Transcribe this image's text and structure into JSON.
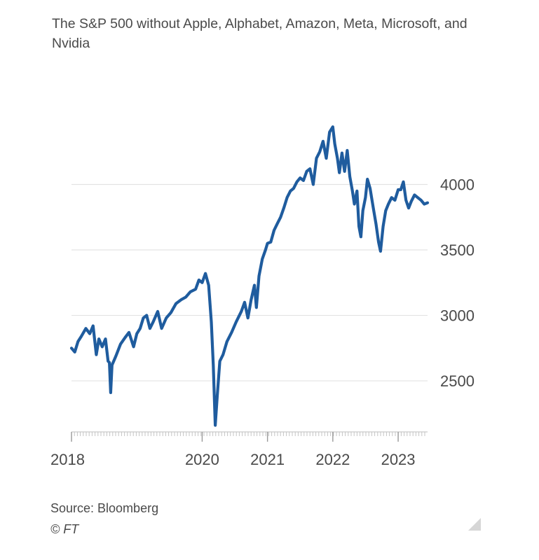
{
  "chart_data": {
    "type": "line",
    "title": "The S&P 500 without Apple, Alphabet, Amazon, Meta, Microsoft, and Nvidia",
    "xlabel": "",
    "ylabel": "",
    "x_tick_labels": [
      "2018",
      "2020",
      "2021",
      "2022",
      "2023"
    ],
    "x_tick_years": [
      2018,
      2020,
      2021,
      2022,
      2023
    ],
    "xlim": [
      2018.0,
      2023.45
    ],
    "y_ticks": [
      2500,
      3000,
      3500,
      4000
    ],
    "ylim": [
      2110,
      4500
    ],
    "grid": true,
    "y_axis_position": "right",
    "line_color": "#1f5c9e",
    "series": [
      {
        "points": [
          [
            2018.0,
            2750
          ],
          [
            2018.05,
            2720
          ],
          [
            2018.1,
            2800
          ],
          [
            2018.15,
            2840
          ],
          [
            2018.22,
            2900
          ],
          [
            2018.28,
            2860
          ],
          [
            2018.33,
            2920
          ],
          [
            2018.38,
            2700
          ],
          [
            2018.42,
            2820
          ],
          [
            2018.47,
            2760
          ],
          [
            2018.52,
            2820
          ],
          [
            2018.56,
            2650
          ],
          [
            2018.58,
            2640
          ],
          [
            2018.6,
            2410
          ],
          [
            2018.62,
            2620
          ],
          [
            2018.68,
            2690
          ],
          [
            2018.75,
            2780
          ],
          [
            2018.82,
            2830
          ],
          [
            2018.88,
            2870
          ],
          [
            2018.95,
            2760
          ],
          [
            2019.0,
            2860
          ],
          [
            2019.05,
            2900
          ],
          [
            2019.1,
            2980
          ],
          [
            2019.15,
            3000
          ],
          [
            2019.2,
            2900
          ],
          [
            2019.25,
            2950
          ],
          [
            2019.32,
            3030
          ],
          [
            2019.38,
            2900
          ],
          [
            2019.45,
            2980
          ],
          [
            2019.52,
            3020
          ],
          [
            2019.6,
            3090
          ],
          [
            2019.68,
            3120
          ],
          [
            2019.75,
            3140
          ],
          [
            2019.82,
            3180
          ],
          [
            2019.9,
            3200
          ],
          [
            2019.95,
            3270
          ],
          [
            2020.0,
            3250
          ],
          [
            2020.05,
            3320
          ],
          [
            2020.1,
            3230
          ],
          [
            2020.14,
            2950
          ],
          [
            2020.17,
            2620
          ],
          [
            2020.2,
            2160
          ],
          [
            2020.23,
            2380
          ],
          [
            2020.27,
            2650
          ],
          [
            2020.32,
            2700
          ],
          [
            2020.38,
            2800
          ],
          [
            2020.45,
            2870
          ],
          [
            2020.52,
            2950
          ],
          [
            2020.6,
            3030
          ],
          [
            2020.65,
            3100
          ],
          [
            2020.7,
            2980
          ],
          [
            2020.75,
            3120
          ],
          [
            2020.8,
            3230
          ],
          [
            2020.83,
            3060
          ],
          [
            2020.87,
            3300
          ],
          [
            2020.92,
            3430
          ],
          [
            2020.97,
            3500
          ],
          [
            2021.0,
            3550
          ],
          [
            2021.05,
            3560
          ],
          [
            2021.1,
            3650
          ],
          [
            2021.15,
            3700
          ],
          [
            2021.2,
            3750
          ],
          [
            2021.25,
            3820
          ],
          [
            2021.3,
            3900
          ],
          [
            2021.35,
            3950
          ],
          [
            2021.4,
            3970
          ],
          [
            2021.45,
            4020
          ],
          [
            2021.5,
            4050
          ],
          [
            2021.55,
            4030
          ],
          [
            2021.6,
            4100
          ],
          [
            2021.65,
            4120
          ],
          [
            2021.7,
            4000
          ],
          [
            2021.75,
            4200
          ],
          [
            2021.8,
            4250
          ],
          [
            2021.85,
            4330
          ],
          [
            2021.9,
            4200
          ],
          [
            2021.95,
            4400
          ],
          [
            2022.0,
            4440
          ],
          [
            2022.03,
            4310
          ],
          [
            2022.07,
            4200
          ],
          [
            2022.1,
            4090
          ],
          [
            2022.14,
            4240
          ],
          [
            2022.18,
            4100
          ],
          [
            2022.22,
            4260
          ],
          [
            2022.26,
            4060
          ],
          [
            2022.3,
            3950
          ],
          [
            2022.33,
            3850
          ],
          [
            2022.37,
            3950
          ],
          [
            2022.4,
            3680
          ],
          [
            2022.43,
            3600
          ],
          [
            2022.46,
            3800
          ],
          [
            2022.5,
            3900
          ],
          [
            2022.53,
            4040
          ],
          [
            2022.57,
            3970
          ],
          [
            2022.62,
            3820
          ],
          [
            2022.66,
            3700
          ],
          [
            2022.7,
            3560
          ],
          [
            2022.73,
            3490
          ],
          [
            2022.77,
            3680
          ],
          [
            2022.81,
            3800
          ],
          [
            2022.85,
            3850
          ],
          [
            2022.9,
            3900
          ],
          [
            2022.95,
            3880
          ],
          [
            2023.0,
            3960
          ],
          [
            2023.04,
            3960
          ],
          [
            2023.08,
            4020
          ],
          [
            2023.12,
            3880
          ],
          [
            2023.16,
            3820
          ],
          [
            2023.2,
            3870
          ],
          [
            2023.25,
            3920
          ],
          [
            2023.3,
            3900
          ],
          [
            2023.35,
            3880
          ],
          [
            2023.4,
            3850
          ],
          [
            2023.45,
            3860
          ]
        ]
      }
    ]
  },
  "footer": {
    "source": "Source: Bloomberg",
    "credit": "© FT"
  },
  "icons": {
    "corner": "resize-corner-icon"
  }
}
